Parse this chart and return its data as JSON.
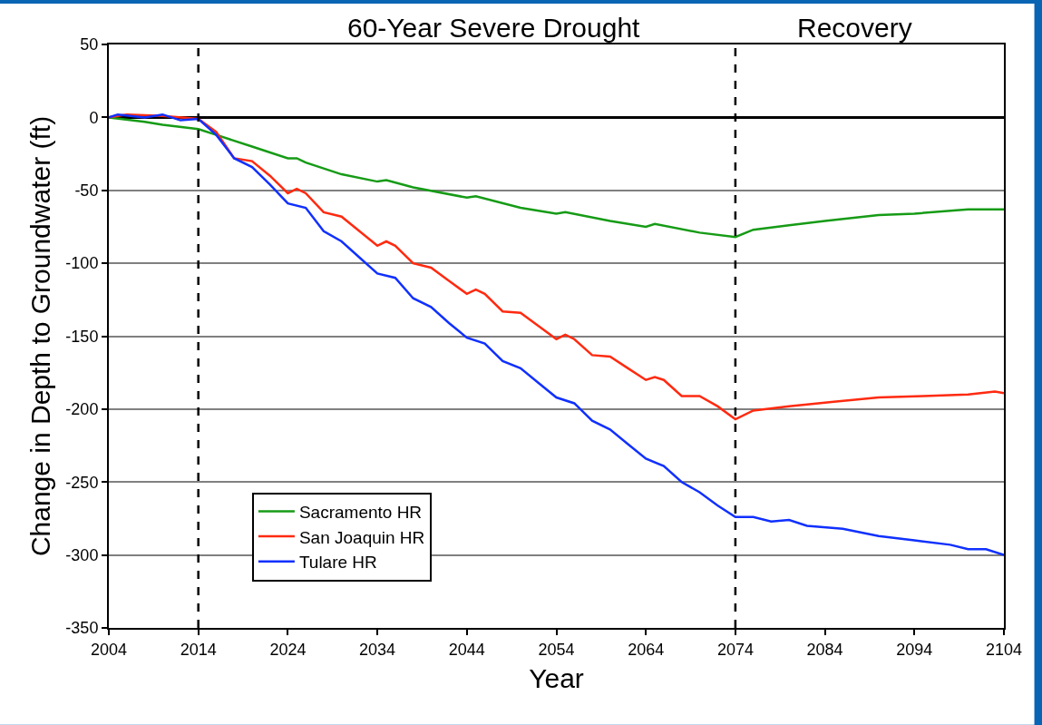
{
  "chart_data": {
    "type": "line",
    "xlabel": "Year",
    "ylabel": "Change in Depth to Groundwater (ft)",
    "annotations": [
      "60-Year Severe Drought",
      "Recovery"
    ],
    "xlim": [
      2004,
      2104
    ],
    "xticks": [
      2004,
      2014,
      2024,
      2034,
      2044,
      2054,
      2064,
      2074,
      2084,
      2094,
      2104
    ],
    "ylim": [
      -350,
      50
    ],
    "yticks": [
      -350,
      -300,
      -250,
      -200,
      -150,
      -100,
      -50,
      0,
      50
    ],
    "grid": "y",
    "legend": "bottom left",
    "line_style": "solid",
    "marker": "none",
    "ref_lines": [
      {
        "axis": "x",
        "value": 2014,
        "label": null,
        "color": "#000000",
        "line_style": "dashed"
      },
      {
        "axis": "x",
        "value": 2074,
        "label": null,
        "color": "#000000",
        "line_style": "dashed"
      }
    ],
    "series": [
      {
        "name": "Sacramento HR",
        "color": "#169b16",
        "x": [
          2004,
          2008,
          2010,
          2014,
          2016,
          2020,
          2024,
          2025,
          2026,
          2030,
          2034,
          2035,
          2038,
          2044,
          2045,
          2050,
          2054,
          2055,
          2060,
          2064,
          2065,
          2070,
          2074,
          2076,
          2080,
          2084,
          2090,
          2094,
          2100,
          2104
        ],
        "values": [
          0,
          -3,
          -5,
          -8,
          -12,
          -20,
          -28,
          -28,
          -31,
          -39,
          -44,
          -43,
          -48,
          -55,
          -54,
          -62,
          -66,
          -65,
          -71,
          -75,
          -73,
          -79,
          -82,
          -77,
          -74,
          -71,
          -67,
          -66,
          -63,
          -63
        ]
      },
      {
        "name": "San Joaquin HR",
        "color": "#ff2a10",
        "x": [
          2004,
          2006,
          2010,
          2014,
          2016,
          2018,
          2020,
          2022,
          2024,
          2025,
          2026,
          2028,
          2030,
          2032,
          2034,
          2035,
          2036,
          2038,
          2040,
          2042,
          2044,
          2045,
          2046,
          2048,
          2050,
          2052,
          2054,
          2055,
          2056,
          2058,
          2060,
          2062,
          2064,
          2065,
          2066,
          2068,
          2070,
          2072,
          2074,
          2076,
          2080,
          2085,
          2090,
          2095,
          2100,
          2103,
          2104
        ],
        "values": [
          0,
          2,
          1,
          -1,
          -10,
          -28,
          -30,
          -40,
          -52,
          -49,
          -52,
          -65,
          -68,
          -78,
          -88,
          -85,
          -88,
          -100,
          -103,
          -112,
          -121,
          -118,
          -121,
          -133,
          -134,
          -143,
          -152,
          -149,
          -152,
          -163,
          -164,
          -172,
          -180,
          -178,
          -180,
          -191,
          -191,
          -198,
          -207,
          -201,
          -198,
          -195,
          -192,
          -191,
          -190,
          -188,
          -189
        ]
      },
      {
        "name": "Tulare HR",
        "color": "#1030ff",
        "x": [
          2004,
          2005,
          2008,
          2010,
          2012,
          2014,
          2016,
          2018,
          2020,
          2022,
          2024,
          2026,
          2028,
          2030,
          2032,
          2034,
          2036,
          2038,
          2040,
          2042,
          2044,
          2046,
          2048,
          2050,
          2052,
          2054,
          2056,
          2058,
          2060,
          2062,
          2064,
          2066,
          2068,
          2070,
          2072,
          2074,
          2076,
          2078,
          2080,
          2082,
          2086,
          2090,
          2094,
          2098,
          2100,
          2102,
          2104
        ],
        "values": [
          0,
          2,
          0,
          2,
          -2,
          -1,
          -12,
          -28,
          -34,
          -46,
          -59,
          -62,
          -78,
          -85,
          -96,
          -107,
          -110,
          -124,
          -130,
          -141,
          -151,
          -155,
          -167,
          -172,
          -182,
          -192,
          -196,
          -208,
          -214,
          -224,
          -234,
          -239,
          -250,
          -257,
          -266,
          -274,
          -274,
          -277,
          -276,
          -280,
          -282,
          -287,
          -290,
          -293,
          -296,
          -296,
          -300
        ]
      }
    ]
  }
}
